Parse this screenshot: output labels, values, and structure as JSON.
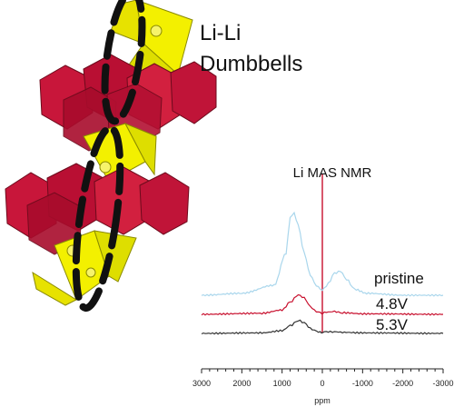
{
  "annotation": {
    "line1": "Li-Li",
    "line2": "Dumbbells"
  },
  "nmr": {
    "title": "Li MAS NMR",
    "xlabel": "ppm",
    "series_labels": [
      "pristine",
      "4.8V",
      "5.3V"
    ],
    "x_ticks": [
      "3000",
      "2000",
      "1000",
      "0",
      "-1000",
      "-2000",
      "-3000"
    ]
  },
  "colors": {
    "octahedra": "#c8163a",
    "tetrahedra": "#f3f000",
    "dumbbell_outline": "#111111",
    "pristine": "#a9d6ec",
    "v48": "#c8102e",
    "v53": "#333333",
    "reference_line": "#c8102e"
  },
  "chart_data": {
    "type": "line",
    "title": "Li MAS NMR",
    "xlabel": "ppm",
    "ylabel": "",
    "xlim": [
      3000,
      -3000
    ],
    "x_ticks": [
      3000,
      2000,
      1000,
      0,
      -1000,
      -2000,
      -3000
    ],
    "grid": false,
    "series": [
      {
        "name": "pristine",
        "x": [
          3000,
          2000,
          1200,
          900,
          800,
          700,
          600,
          450,
          300,
          150,
          50,
          0,
          -50,
          -150,
          -300,
          -450,
          -600,
          -800,
          -1100,
          -2000,
          -3000
        ],
        "values": [
          0,
          0.02,
          0.1,
          0.42,
          0.78,
          0.82,
          0.7,
          0.42,
          0.2,
          0.1,
          0.06,
          0.05,
          0.07,
          0.12,
          0.22,
          0.24,
          0.16,
          0.06,
          0.02,
          0,
          0
        ]
      },
      {
        "name": "4.8V",
        "x": [
          3000,
          1500,
          1000,
          800,
          600,
          450,
          300,
          150,
          50,
          0,
          -100,
          -300,
          -500,
          -1000,
          -3000
        ],
        "values": [
          0,
          0.02,
          0.08,
          0.22,
          0.36,
          0.3,
          0.14,
          0.05,
          0.03,
          0.02,
          0.04,
          0.05,
          0.03,
          0.01,
          0
        ]
      },
      {
        "name": "5.3V",
        "x": [
          3000,
          1500,
          1000,
          800,
          600,
          450,
          300,
          150,
          50,
          0,
          -100,
          -300,
          -500,
          -1000,
          -3000
        ],
        "values": [
          0,
          0.01,
          0.05,
          0.14,
          0.24,
          0.2,
          0.09,
          0.04,
          0.02,
          0.02,
          0.03,
          0.03,
          0.02,
          0.01,
          0
        ]
      }
    ]
  }
}
